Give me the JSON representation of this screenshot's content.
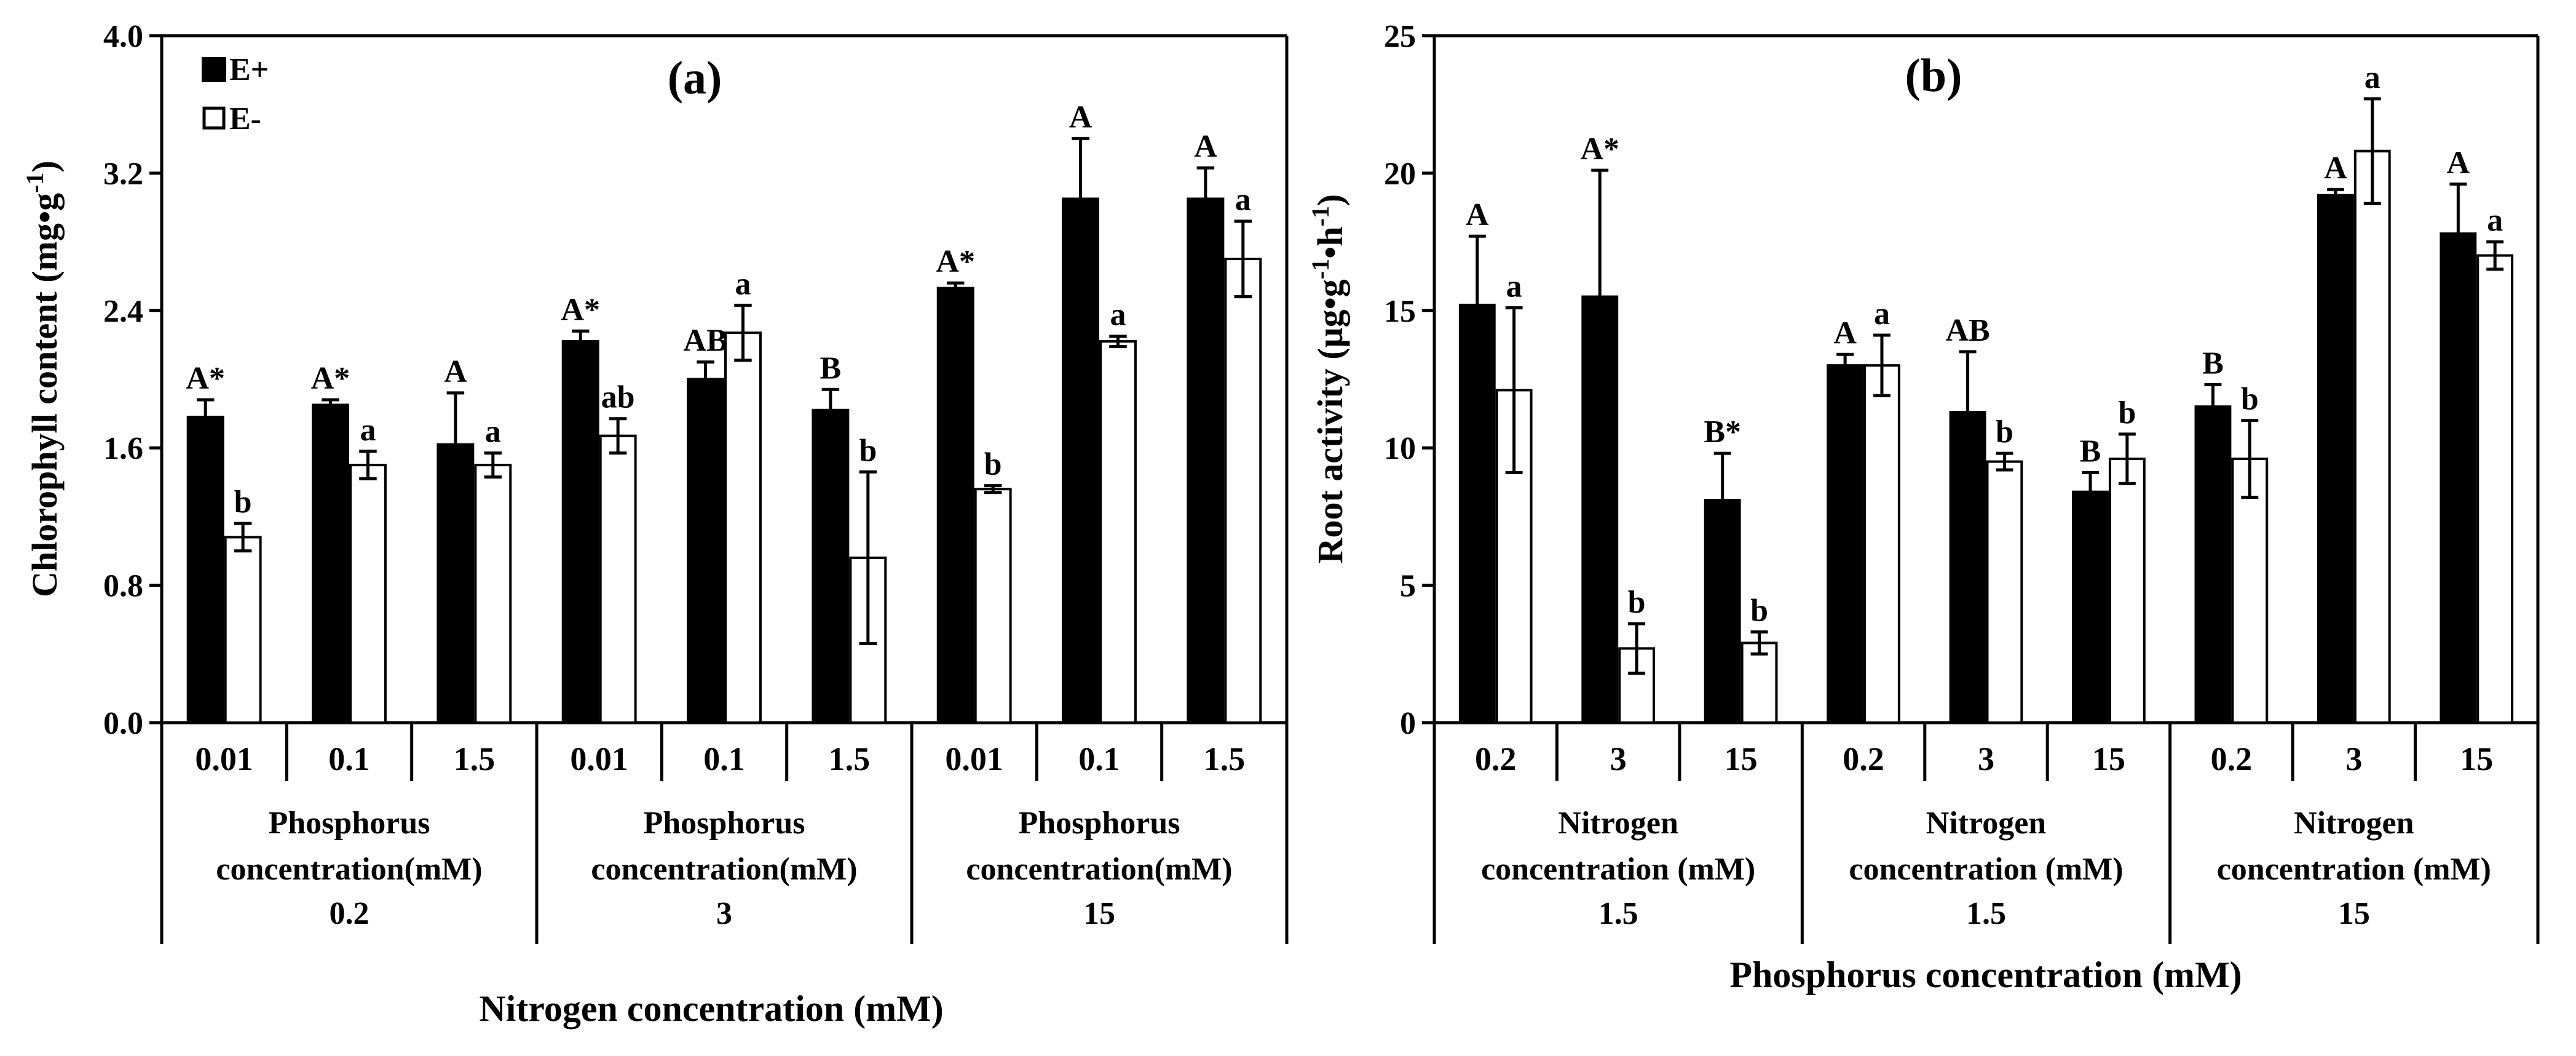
{
  "figure": {
    "panels": [
      "a",
      "b"
    ]
  },
  "chart_data": [
    {
      "type": "bar",
      "panel_label": "(a)",
      "ylabel_main": "Chlorophyll content (mg•g",
      "ylabel_exp": "-1",
      "ylabel_end": ")",
      "xlabel": "Nitrogen concentration (mM)",
      "ylim": [
        0,
        4.0
      ],
      "yticks": [
        0,
        0.8,
        1.6,
        2.4,
        3.2,
        4.0
      ],
      "ytick_labels": [
        "0.0",
        "0.8",
        "1.6",
        "2.4",
        "3.2",
        "4.0"
      ],
      "categories": [
        "0.01",
        "0.1",
        "1.5",
        "0.01",
        "0.1",
        "1.5",
        "0.01",
        "0.1",
        "1.5"
      ],
      "groups": [
        {
          "lines": [
            "Phosphorus",
            "concentration(mM)",
            "0.2"
          ]
        },
        {
          "lines": [
            "Phosphorus",
            "concentration(mM)",
            "3"
          ]
        },
        {
          "lines": [
            "Phosphorus",
            "concentration(mM)",
            "15"
          ]
        }
      ],
      "series": [
        {
          "name": "E+",
          "values": [
            1.78,
            1.85,
            1.62,
            2.22,
            2.0,
            1.82,
            2.53,
            3.05,
            3.05
          ],
          "errors": [
            0.1,
            0.03,
            0.3,
            0.06,
            0.1,
            0.12,
            0.03,
            0.35,
            0.18
          ],
          "letters": [
            "A*",
            "A*",
            "A",
            "A*",
            "AB",
            "B",
            "A*",
            "A",
            "A"
          ]
        },
        {
          "name": "E-",
          "values": [
            1.08,
            1.5,
            1.5,
            1.67,
            2.27,
            0.96,
            1.36,
            2.22,
            2.7
          ],
          "errors": [
            0.08,
            0.08,
            0.07,
            0.1,
            0.16,
            0.5,
            0.02,
            0.03,
            0.22
          ],
          "letters": [
            "b",
            "a",
            "a",
            "ab",
            "a",
            "b",
            "b",
            "a",
            "a"
          ]
        }
      ],
      "legend": {
        "position": "top-left",
        "entries": [
          "E+",
          "E-"
        ]
      }
    },
    {
      "type": "bar",
      "panel_label": "(b)",
      "ylabel_main": "Root activity (μg•g",
      "ylabel_exp": "-1",
      "ylabel_mid": "•h",
      "ylabel_exp2": "-1",
      "ylabel_end": ")",
      "xlabel": "Phosphorus concentration (mM)",
      "ylim": [
        0,
        25
      ],
      "yticks": [
        0,
        5,
        10,
        15,
        20,
        25
      ],
      "ytick_labels": [
        "0",
        "5",
        "10",
        "15",
        "20",
        "25"
      ],
      "categories": [
        "0.2",
        "3",
        "15",
        "0.2",
        "3",
        "15",
        "0.2",
        "3",
        "15"
      ],
      "groups": [
        {
          "lines": [
            "Nitrogen",
            "concentration (mM)",
            "1.5"
          ]
        },
        {
          "lines": [
            "Nitrogen",
            "concentration (mM)",
            "1.5"
          ]
        },
        {
          "lines": [
            "Nitrogen",
            "concentration (mM)",
            "15"
          ]
        }
      ],
      "series": [
        {
          "name": "E+",
          "values": [
            15.2,
            15.5,
            8.1,
            13.0,
            11.3,
            8.4,
            11.5,
            19.2,
            17.8
          ],
          "errors": [
            2.5,
            4.6,
            1.7,
            0.4,
            2.2,
            0.7,
            0.8,
            0.2,
            1.8
          ],
          "letters": [
            "A",
            "A*",
            "B*",
            "A",
            "AB",
            "B",
            "B",
            "A",
            "A"
          ]
        },
        {
          "name": "E-",
          "values": [
            12.1,
            2.7,
            2.9,
            13.0,
            9.5,
            9.6,
            9.6,
            20.8,
            17.0
          ],
          "errors": [
            3.0,
            0.9,
            0.4,
            1.1,
            0.3,
            0.9,
            1.4,
            1.9,
            0.5
          ],
          "letters": [
            "a",
            "b",
            "b",
            "a",
            "b",
            "b",
            "b",
            "a",
            "a"
          ]
        }
      ]
    }
  ]
}
